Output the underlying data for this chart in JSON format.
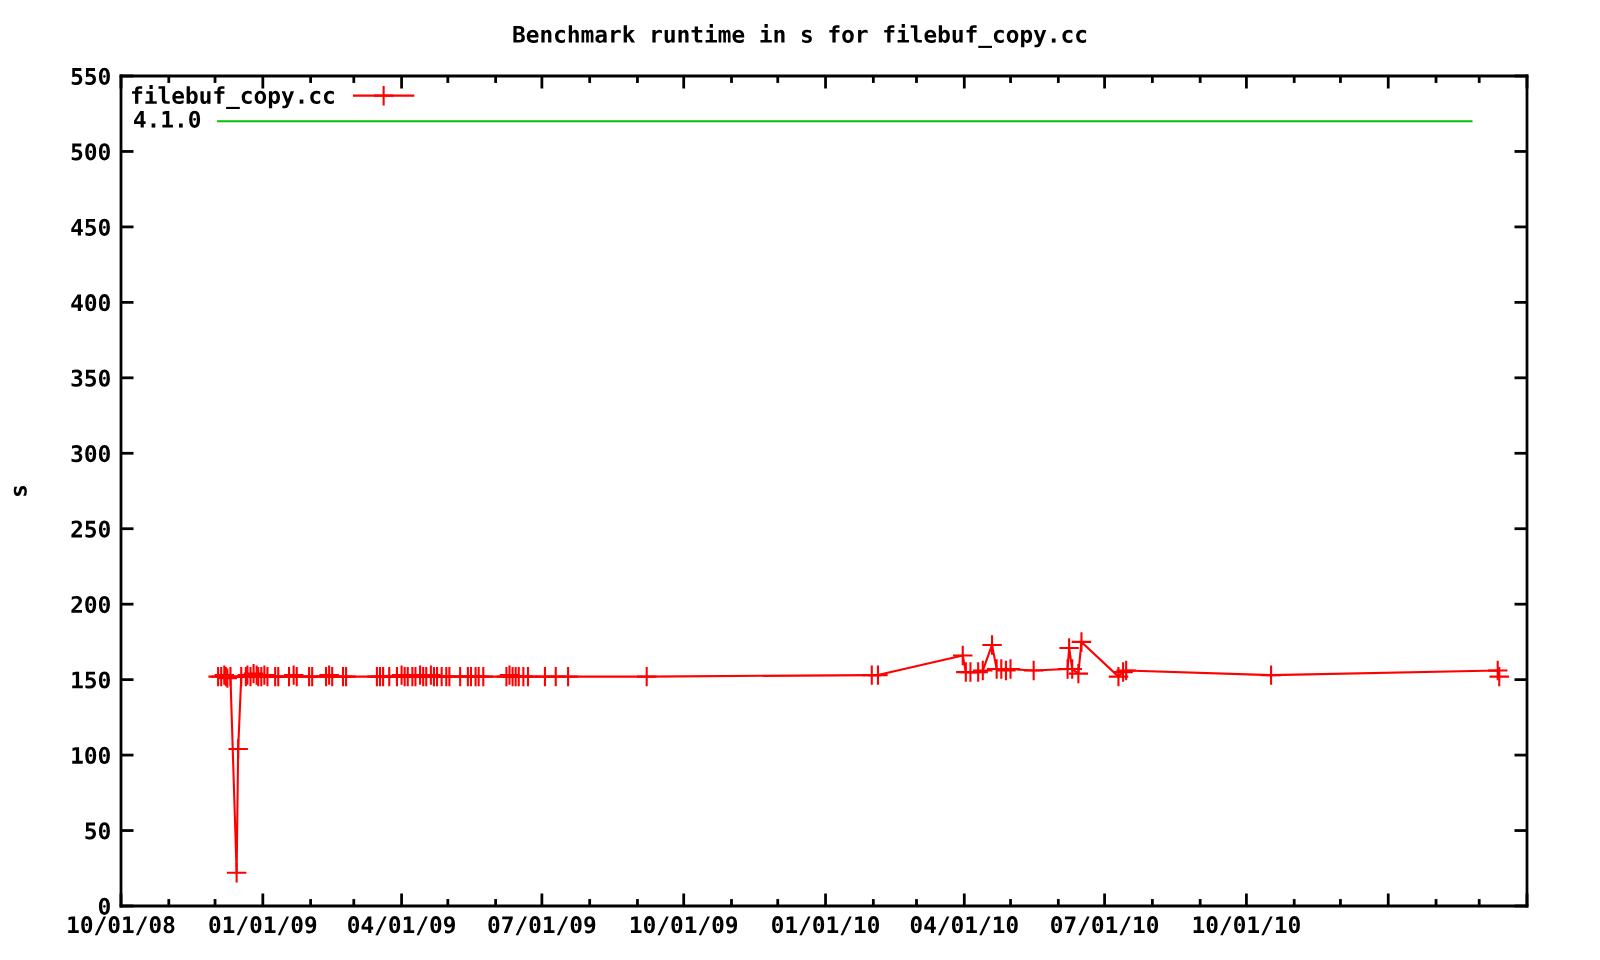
{
  "chart_data": {
    "type": "line",
    "title": "Benchmark runtime in s for filebuf_copy.cc",
    "ylabel": "s",
    "xlim": [
      "2008-10-01",
      "2011-04-01"
    ],
    "xticks": [
      {
        "value": "2008-10-01",
        "label": "10/01/08"
      },
      {
        "value": "2009-01-01",
        "label": "01/01/09"
      },
      {
        "value": "2009-04-01",
        "label": "04/01/09"
      },
      {
        "value": "2009-07-01",
        "label": "07/01/09"
      },
      {
        "value": "2009-10-01",
        "label": "10/01/09"
      },
      {
        "value": "2010-01-01",
        "label": "01/01/10"
      },
      {
        "value": "2010-04-01",
        "label": "04/01/10"
      },
      {
        "value": "2010-07-01",
        "label": "07/01/10"
      },
      {
        "value": "2010-10-01",
        "label": "10/01/10"
      },
      {
        "value": "2011-01-01",
        "label": null
      },
      {
        "value": "2011-04-01",
        "label": null
      }
    ],
    "ylim": [
      0,
      550
    ],
    "yticks": [
      0,
      50,
      100,
      150,
      200,
      250,
      300,
      350,
      400,
      450,
      500,
      550
    ],
    "legend": "top left",
    "marker": "cross",
    "annotations": [
      {
        "text": "4.1.0",
        "x": "2008-12-03",
        "y": 520
      }
    ],
    "series": [
      {
        "name": "filebuf_copy.cc",
        "color": "#ff0000",
        "x": [
          "2008-12-03",
          "2008-12-05",
          "2008-12-07",
          "2008-12-08",
          "2008-12-09",
          "2008-12-11",
          "2008-12-15",
          "2008-12-16",
          "2008-12-18",
          "2008-12-21",
          "2008-12-22",
          "2008-12-24",
          "2008-12-26",
          "2008-12-28",
          "2008-12-29",
          "2008-12-31",
          "2009-01-02",
          "2009-01-04",
          "2009-01-09",
          "2009-01-11",
          "2009-01-18",
          "2009-01-21",
          "2009-01-23",
          "2009-01-31",
          "2009-02-02",
          "2009-02-11",
          "2009-02-13",
          "2009-02-15",
          "2009-02-22",
          "2009-02-24",
          "2009-03-16",
          "2009-03-18",
          "2009-03-20",
          "2009-03-24",
          "2009-03-29",
          "2009-04-01",
          "2009-04-03",
          "2009-04-05",
          "2009-04-08",
          "2009-04-10",
          "2009-04-13",
          "2009-04-15",
          "2009-04-17",
          "2009-04-20",
          "2009-04-22",
          "2009-04-24",
          "2009-04-27",
          "2009-04-30",
          "2009-05-02",
          "2009-05-09",
          "2009-05-14",
          "2009-05-16",
          "2009-05-19",
          "2009-05-21",
          "2009-05-24",
          "2009-06-08",
          "2009-06-10",
          "2009-06-12",
          "2009-06-14",
          "2009-06-16",
          "2009-06-19",
          "2009-06-22",
          "2009-07-03",
          "2009-07-10",
          "2009-07-18",
          "2009-09-07",
          "2010-01-31",
          "2010-02-04",
          "2010-03-31",
          "2010-04-02",
          "2010-04-05",
          "2010-04-10",
          "2010-04-13",
          "2010-04-19",
          "2010-04-22",
          "2010-04-25",
          "2010-04-28",
          "2010-05-01",
          "2010-05-16",
          "2010-06-07",
          "2010-06-08",
          "2010-06-10",
          "2010-06-14",
          "2010-06-16",
          "2010-07-10",
          "2010-07-13",
          "2010-07-15",
          "2010-10-17",
          "2011-03-13",
          "2011-03-14"
        ],
        "values": [
          152,
          152,
          153,
          152,
          151,
          152,
          22,
          104,
          152,
          152,
          153,
          152,
          154,
          153,
          152,
          152,
          153,
          152,
          152,
          152,
          152,
          153,
          152,
          152,
          152,
          152,
          153,
          152,
          152,
          152,
          152,
          152,
          152,
          152,
          152,
          153,
          152,
          152,
          152,
          152,
          153,
          152,
          152,
          153,
          152,
          152,
          152,
          152,
          152,
          152,
          152,
          152,
          152,
          152,
          152,
          152,
          153,
          152,
          152,
          152,
          152,
          152,
          152,
          152,
          152,
          152,
          153,
          153,
          166,
          155,
          155,
          155,
          156,
          173,
          157,
          157,
          156,
          157,
          156,
          157,
          171,
          157,
          154,
          175,
          152,
          155,
          156,
          153,
          156,
          152
        ]
      },
      {
        "color": "#00c000",
        "marker": "none",
        "x": [
          "2008-12-03",
          "2011-02-24"
        ],
        "values": [
          520,
          520
        ]
      }
    ]
  }
}
